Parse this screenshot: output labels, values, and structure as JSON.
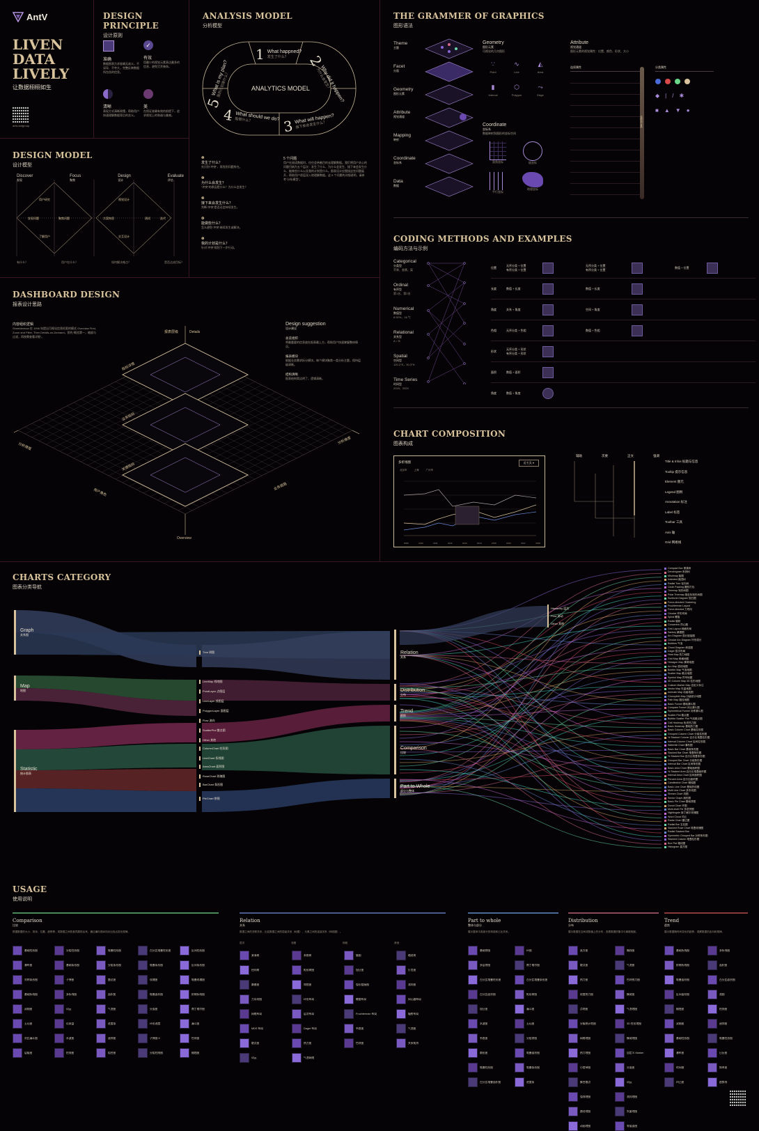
{
  "brand": {
    "logo": "AntV",
    "tagline_lines": [
      "LIVEN",
      "DATA",
      "LIVELY"
    ],
    "tagline_cn": "让数据栩栩如生",
    "qr_caption": "antv.antgroup"
  },
  "design_principle": {
    "title": "DESIGN PRINCIPLE",
    "subtitle": "设计原则",
    "items": [
      {
        "name": "准确",
        "desc": "数据图表力求准确无歧义，不误导、不夸大，完整反映数据所包含的信息。"
      },
      {
        "name": "有效",
        "desc": "用最少的视觉元素表达最多的信息，避免冗余装饰。"
      },
      {
        "name": "清晰",
        "desc": "表现方式清晰易懂，帮助用户快速理解数据背后的含义。"
      },
      {
        "name": "美",
        "desc": "在保证准确有效的前提下，追求视觉上的和谐与美感。"
      }
    ]
  },
  "analysis_model": {
    "title": "ANALYSIS MODEL",
    "subtitle": "分析模型",
    "center": "ANALYTICS MODEL",
    "steps": [
      {
        "n": "1",
        "en": "What happned?",
        "cn": "发生了什么？"
      },
      {
        "n": "2",
        "en": "Why did it happen?",
        "cn": "为什么会发生？"
      },
      {
        "n": "3",
        "en": "What will happen?",
        "cn": "接下来会发生什么？"
      },
      {
        "n": "4",
        "en": "What should we do?",
        "cn": "能做什么？"
      },
      {
        "n": "5",
        "en": "What is my plan?",
        "cn": "我的计划是什么？"
      }
    ],
    "notes": [
      {
        "n": "1",
        "title": "发生了什么？",
        "text": "先识别“冲突”，再找到问题所在。"
      },
      {
        "n": "2",
        "title": "为什么会发生？",
        "text": "“冲突”的原因是什么？为什么会发生？"
      },
      {
        "n": "3",
        "title": "接下来会发生什么？",
        "text": "判断“冲突”是否还会持续发生。"
      },
      {
        "n": "4",
        "title": "能做些什么？",
        "text": "怎么避免“冲突”继续发生或解决。"
      },
      {
        "n": "5",
        "title": "我的计划是什么？",
        "text": "针对“冲突”规划下一步行动。"
      }
    ],
    "side_title": "5 个问题",
    "side_text": "用户在阅读数据时，往往会带着目的去理解数据。我们将用户关心的问题归纳为五个层次：发生了什么、为什么会发生、接下来会发生什么、能做些什么以及我的计划是什么。图表设计应围绕这些问题展开，帮助用户逐层深入地理解数据。这 5 个问题的详细说明，请参考“分析模型”。"
  },
  "grammar": {
    "title": "THE GRAMMER OF GRAPHICS",
    "subtitle": "图形语法",
    "layers": [
      {
        "en": "Theme",
        "cn": "主题"
      },
      {
        "en": "Facet",
        "cn": "分面"
      },
      {
        "en": "Geometry",
        "cn": "图形元素"
      },
      {
        "en": "Attribute",
        "cn": "视觉通道"
      },
      {
        "en": "Mapping",
        "cn": "映射"
      },
      {
        "en": "Coordinate",
        "cn": "坐标系"
      },
      {
        "en": "Data",
        "cn": "数据"
      }
    ],
    "geometry": {
      "title": "Geometry",
      "cn": "图形元素",
      "desc": "可视化的几何图形",
      "items": [
        "Point",
        "Line",
        "Area",
        "Interval",
        "Polygon",
        "Edge"
      ]
    },
    "coordinate": {
      "title": "Coordinate",
      "cn": "坐标系",
      "desc": "数据映射到图形的坐标空间",
      "items": [
        "直角坐标",
        "极坐标",
        "平行坐标",
        "地理坐标"
      ]
    },
    "attribute": {
      "title": "Attribute",
      "cn": "视觉通道",
      "desc": "图形元素的视觉属性：位置、颜色、形状、大小",
      "col1": "连续属性",
      "col2": "分类属性",
      "slider": "连续到分类"
    }
  },
  "design_model": {
    "title": "DESIGN MODEL",
    "subtitle": "设计模型",
    "phases": [
      {
        "en": "Discover",
        "cn": "发现"
      },
      {
        "en": "Focus",
        "cn": "聚焦"
      },
      {
        "en": "Design",
        "cn": "设计"
      },
      {
        "en": "Evaluate",
        "cn": "评估"
      }
    ],
    "bottom": [
      "有什么？",
      "用户在什么？",
      "如何解决难点？",
      "是否达成目标？"
    ]
  },
  "coding": {
    "title": "CODING METHODS AND EXAMPLES",
    "subtitle": "编码方法与示例",
    "types": [
      {
        "en": "Categorical",
        "cn": "分类型",
        "ex": "苹果、香蕉、梨"
      },
      {
        "en": "Ordinal",
        "cn": "有序型",
        "ex": "第1名、第2名"
      },
      {
        "en": "Numerical",
        "cn": "数值型",
        "ex": "8.92%、16 ℃"
      },
      {
        "en": "Relational",
        "cn": "关系型",
        "ex": "A > B"
      },
      {
        "en": "Spatial",
        "cn": "空间型",
        "ex": "120.2°E，30.3°N"
      },
      {
        "en": "Time Series",
        "cn": "时间型",
        "ex": "2019、2020"
      }
    ],
    "rows": [
      {
        "label": "位置",
        "a": "无序分类 + 位置\n有序分类 + 位置",
        "b": "无序分类 + 位置\n有序分类 + 位置",
        "c": "数值 + 位置"
      },
      {
        "label": "长度",
        "a": "数值 + 长度",
        "b": "数值 + 长度",
        "c": ""
      },
      {
        "label": "角度",
        "a": "关系 + 角度",
        "b": "空间 + 角度",
        "c": ""
      },
      {
        "label": "色相",
        "a": "无序分类 + 色相",
        "b": "数值 + 色相",
        "c": ""
      },
      {
        "label": "形状",
        "a": "无序分类 + 形状\n有序分类 + 形状",
        "b": "",
        "c": ""
      },
      {
        "label": "面积",
        "a": "数值 + 面积",
        "b": "",
        "c": ""
      },
      {
        "label": "角度",
        "a": "数值 + 角度",
        "b": "",
        "c": ""
      }
    ]
  },
  "dashboard": {
    "title": "DASHBOARD DESIGN",
    "subtitle": "报表设计思路",
    "intro_title": "内容组织逻辑",
    "intro": "Shneiderman 在 1996 年提出可视化信息检索的模式 Overview First, Zoom and Filter, Then Details-on-Demand，即先“概览第一，缩放与过滤，再按需查看详细”。",
    "suggest_title": "Design suggestion",
    "suggest_cn": "设计建议",
    "suggestions": [
      {
        "t": "总览组织",
        "d": "将最重要的信息放在报表最上方，帮助用户快速掌握整体情况。"
      },
      {
        "t": "报表模块",
        "d": "根据业务需求拆分模块，每个模块聚焦一类分析主题，保持层级清晰。"
      },
      {
        "t": "结构清晰",
        "d": "报表结构简洁明了，逻辑清晰。"
      }
    ],
    "axis": {
      "top": "Details",
      "left": "分析维度",
      "right": "分析维度",
      "bottom": "Overview",
      "bl": "用户角色",
      "br": "业务链路",
      "layer_labels": [
        "指标详情",
        "业务指标",
        "关键指标"
      ],
      "detail_label": "报表层级"
    }
  },
  "composition": {
    "title": "CHART COMPOSITION",
    "subtitle": "图表构成",
    "chart_title": "多折线图",
    "dropdown": "近七天",
    "legend": [
      "北京市",
      "上海",
      "广州市"
    ],
    "x_labels": [
      "2009",
      "2010",
      "2011",
      "2012",
      "2013",
      "2014",
      "2015",
      "2016",
      "2017",
      "2018"
    ],
    "tree_headers": [
      "辅助",
      "次要",
      "正文",
      "强调"
    ],
    "parts": [
      "Title & Infos 标题与信息",
      "Tooltip 提示信息",
      "Element 图元",
      "Legend 图例",
      "Annotation 标注",
      "Label 标签",
      "Toolbar 工具",
      "Axis 轴",
      "Grid 网格线"
    ]
  },
  "categories": {
    "title": "CHARTS CATEGORY",
    "subtitle": "图表分类导航",
    "roots": [
      {
        "en": "Graph",
        "cn": "关系图"
      },
      {
        "en": "Map",
        "cn": "地图"
      },
      {
        "en": "Statistic",
        "cn": "统计图表"
      }
    ],
    "mid": [
      "Tree 树图",
      "LineMap 线地图",
      "PointLayer 点图层",
      "LineLayer 线图层",
      "PolygonLayer 面图层",
      "Flow 流向",
      "ScatterPlot 散点图",
      "Other 其他",
      "ColumnChart 柱形图",
      "LineChart 折线图",
      "AreaChart 面积图",
      "RoseChart 玫瑰图",
      "BarChart 条形图",
      "PieChart 饼图"
    ],
    "purposes": [
      {
        "en": "Relation",
        "cn": "关系"
      },
      {
        "en": "Distribution",
        "cn": "分布"
      },
      {
        "en": "Trend",
        "cn": "趋势"
      },
      {
        "en": "Comparison",
        "cn": "比较"
      },
      {
        "en": "Part to Whole",
        "cn": "部分与整体"
      }
    ],
    "small": [
      "Hierarchy 层次",
      "Flow 流动",
      "Other 其他"
    ],
    "leaves": [
      "Compact Box 紧凑树",
      "Dendrogram 系统树",
      "Mindmap 脑图",
      "Indented 缩进树",
      "Radial Tree 径向树",
      "Circle Packing 圆形打包",
      "Treemap 矩形树图",
      "Polar Treemap 极坐标矩形树图",
      "Sunburst Diagram 旭日图",
      "Force-directed Clustering",
      "Fruchterman Layout",
      "Force-directed 力导向",
      "Circular 环形布局",
      "Spiral 螺旋",
      "Radial 辐射",
      "Concentric 同心圆",
      "Grid Layout 网格布局",
      "Sankey 桑基图",
      "Arc Diagram 弧长链接图",
      "Circular Arc Diagram 环形弧长",
      "Bubbles 气泡",
      "Chord Diagram 和弦图",
      "Dagre 层次布局",
      "Heat Map 热力地图",
      "Grid Map 网格地图",
      "Hexagon Map 蜂窝地图",
      "Arc Map 弧线地图",
      "Bubble Map 气泡地图",
      "Scatter Map 散点地图",
      "Symbol Map 符号地图",
      "3D Column Map 3D 柱形地图",
      "Custom Marker Map 自定义标注",
      "Vector Map 矢量地图",
      "Animate Map 动画地图",
      "Choropleth Map 分级统计地图",
      "Path Map 路径地图",
      "Basic Funnel 基础漏斗图",
      "Compare Funnel 对比漏斗图",
      "Symmetrical Funnel 对称漏斗图",
      "Scatter Plot 散点图",
      "Bubble Scatter Plot 气泡散点图",
      "Cell Heatmap 色块热力图",
      "Basic Heatmap 基础热力图",
      "Basic Column Chart 基础柱形图",
      "Grouped Column Chart 分组柱形图",
      "% Stacked Column 百分比堆叠柱形图",
      "Interval Column Chart 区间柱形图",
      "Waterfall Chart 瀑布图",
      "Basic Bar Chart 基础条形图",
      "Stacked Bar Chart 堆叠条形图",
      "% Stacked Bar 百分比堆叠条形图",
      "Grouped Bar Chart 分组条形图",
      "Interval Bar Chart 区间条形图",
      "Basic Area Chart 基础面积图",
      "% Stacked Area 百分比堆叠面积图",
      "Interval Area Chart 区间面积图",
      "Percent Area 百分比面积图",
      "Candlestick Chart 蜡烛图",
      "Basic Line Chart 基础折线图",
      "Multi Line Chart 多折线图",
      "Stream Chart 流图",
      "Sector Graph 扇形图",
      "Basic Pie Chart 基础饼图",
      "Donut Chart 环图",
      "Multi-level Pie 多层饼图",
      "Nightingale 南丁格尔玫瑰图",
      "Word Cloud 词云",
      "Radar Chart 雷达图",
      "Radial Bar 玉珏图",
      "Stacked Rose Chart 堆叠玫瑰图",
      "Radial Stacked Bar",
      "Symmetric Grouped Bar 对称条形图",
      "Stacked Column 堆叠柱形图",
      "Box Plot 箱线图",
      "Histogram 直方图"
    ]
  },
  "usage": {
    "title": "USAGE",
    "subtitle": "使用说明",
    "sections": [
      {
        "en": "Comparison",
        "cn": "比较",
        "desc": "根据数据的大小、排序、位置、趋势等，将数据之间的差异展现出来，通过横向或纵向对比找出变化规律。",
        "color": "#4a8a5a",
        "items": [
          "基础柱形图",
          "分组柱形图",
          "堆叠柱形图",
          "百分比堆叠柱形图",
          "区间柱形图",
          "瀑布图",
          "基础条形图",
          "分组条形图",
          "堆叠条形图",
          "区间条形图",
          "对称条形图",
          "子弹图",
          "雷达图",
          "玫瑰图",
          "堆叠玫瑰图",
          "基础折线图",
          "多折线图",
          "面积图",
          "堆叠面积图",
          "阶梯折线图",
          "双轴图",
          "词云",
          "气泡图",
          "分面图",
          "南丁格尔图",
          "玉珏图",
          "仪表盘",
          "进度条",
          "环形进度",
          "漏斗图",
          "对比漏斗图",
          "水波图",
          "迷你图",
          "子弹图 II",
          "色块图",
          "层级图",
          "柱线图",
          "组合图",
          "分组柱线图",
          "蜡烛图"
        ]
      },
      {
        "en": "Relation",
        "cn": "关系",
        "desc": "数据之间的关联关系，比如数据之间的层级关系（树图）、元素之间的连接关系（网络图）。",
        "color": "#4a5a8a",
        "subcats": [
          "层次",
          "流程",
          "网络",
          "其他"
        ],
        "items": [
          "紧凑树",
          "系统树",
          "脑图",
          "缩进树",
          "径向树",
          "矩形树图",
          "旭日图",
          "打包图",
          "桑基图",
          "和弦图",
          "弧长链接图",
          "流向图",
          "力导向图",
          "环形布局",
          "螺旋布局",
          "同心圆布局",
          "网格布局",
          "层次布局",
          "Fruchterman 布局",
          "辐射布局",
          "MDS 布局",
          "Dagre 布局",
          "韦恩图",
          "气泡图",
          "散点图",
          "热力图",
          "色块图",
          "关系矩阵",
          "词云",
          "气泡网络"
        ]
      },
      {
        "en": "Part to whole",
        "cn": "整体与部分",
        "desc": "展示整体中各部分的构成和占比关系。",
        "color": "#4a6a9a",
        "items": [
          "基础饼图",
          "环图",
          "多层饼图",
          "南丁格尔图",
          "百分比堆叠柱形图",
          "百分比堆叠条形图",
          "百分比面积图",
          "矩形树图",
          "旭日图",
          "漏斗图",
          "水波图",
          "玉珏图",
          "韦恩图",
          "分组饼图",
          "扇形图",
          "堆叠面积图",
          "堆叠柱形图",
          "堆叠条形图",
          "百分比堆叠面积图",
          "进度条"
        ]
      },
      {
        "en": "Distribution",
        "cn": "分布",
        "desc": "展示数据在空间或数值上的分布，查看数据的集中与离散程度。",
        "color": "#8a4a5a",
        "items": [
          "直方图",
          "箱线图",
          "散点图",
          "气泡图",
          "热力图",
          "色块热力图",
          "密度热力图",
          "蜂窝图",
          "点地图",
          "气泡地图",
          "分级统计地图",
          "3D 柱形地图",
          "网格地图",
          "蜂窝地图",
          "热力地图",
          "自定义 Marker",
          "小提琴图",
          "分面图",
          "聚合散点",
          "词云",
          "弧线地图",
          "流向地图",
          "路径地图",
          "矢量地图",
          "动画地图",
          "等值面图"
        ]
      },
      {
        "en": "Trend",
        "cn": "趋势",
        "desc": "展示数据随时间变化的趋势，观察数据的走向和规律。",
        "color": "#8a3a3a",
        "items": [
          "基础折线图",
          "多折线图",
          "阶梯折线图",
          "面积图",
          "堆叠面积图",
          "百分比面积图",
          "区间面积图",
          "流图",
          "蜡烛图",
          "柱线图",
          "双轴图",
          "迷你图",
          "基础柱形图",
          "堆叠柱形图",
          "瀑布图",
          "日历图",
          "时间轴",
          "斜率图",
          "凹凸图",
          "趋势线"
        ]
      }
    ]
  }
}
